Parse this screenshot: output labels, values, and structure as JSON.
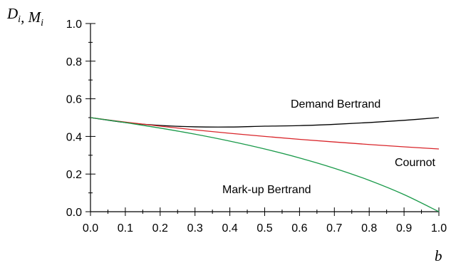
{
  "chart_data": {
    "type": "line",
    "ylabel": {
      "parts": [
        {
          "text": "D",
          "sub": "i"
        },
        {
          "text": ", M",
          "sub": "i"
        }
      ]
    },
    "xlabel": "b",
    "xlim": [
      0,
      1
    ],
    "ylim": [
      0,
      1
    ],
    "x_ticks": [
      "0.0",
      "0.1",
      "0.2",
      "0.3",
      "0.4",
      "0.5",
      "0.6",
      "0.7",
      "0.8",
      "0.9",
      "1.0"
    ],
    "y_ticks": [
      "0.0",
      "0.2",
      "0.4",
      "0.6",
      "0.8",
      "1.0"
    ],
    "grid": false,
    "series": [
      {
        "name": "Demand Bertrand",
        "color": "#000000",
        "x": [
          0.0,
          0.1,
          0.2,
          0.3,
          0.4,
          0.5,
          0.6,
          0.7,
          0.8,
          0.9,
          1.0
        ],
        "y": [
          0.5,
          0.4737,
          0.4583,
          0.451,
          0.45,
          0.4545,
          0.4573,
          0.4642,
          0.4738,
          0.4856,
          0.5
        ]
      },
      {
        "name": "Cournot",
        "color": "#d9262b",
        "x": [
          0.0,
          0.1,
          0.2,
          0.3,
          0.4,
          0.5,
          0.6,
          0.7,
          0.8,
          0.9,
          1.0
        ],
        "y": [
          0.5,
          0.4762,
          0.4545,
          0.4348,
          0.4167,
          0.4,
          0.3846,
          0.3704,
          0.3571,
          0.3448,
          0.3333
        ]
      },
      {
        "name": "Mark-up Bertrand",
        "color": "#1a9a4a",
        "x": [
          0.0,
          0.1,
          0.2,
          0.3,
          0.4,
          0.5,
          0.6,
          0.7,
          0.8,
          0.9,
          1.0
        ],
        "y": [
          0.5,
          0.4737,
          0.4444,
          0.4118,
          0.375,
          0.3333,
          0.2857,
          0.2308,
          0.1667,
          0.0909,
          0.0
        ]
      }
    ]
  }
}
